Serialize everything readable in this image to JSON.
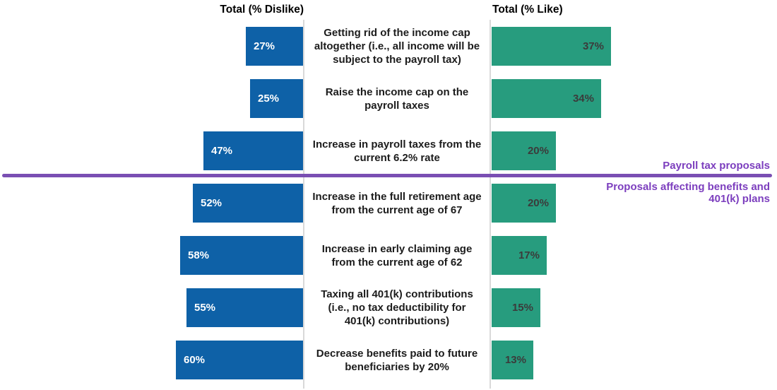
{
  "chart_data": {
    "type": "bar",
    "variant": "diverging-horizontal",
    "left_header": "Total (% Dislike)",
    "right_header": "Total (% Like)",
    "value_suffix": "%",
    "grid": "off",
    "legend_position": "column-headers",
    "categories": [
      "Getting rid of the income cap altogether (i.e., all income will be subject to the payroll tax)",
      "Raise the income cap on the payroll taxes",
      "Increase in payroll taxes from the current 6.2% rate",
      "Increase in the full retirement age from the current age of 67",
      "Increase in early claiming age from the current age of 62",
      "Taxing all 401(k) contributions (i.e., no tax deductibility for 401(k) contributions)",
      "Decrease benefits paid to future beneficiaries by 20%"
    ],
    "series": [
      {
        "name": "Total (% Dislike)",
        "side": "left",
        "color": "#0E61A7",
        "label_color": "#FFFFFF",
        "values": [
          27,
          25,
          47,
          52,
          58,
          55,
          60
        ]
      },
      {
        "name": "Total (% Like)",
        "side": "right",
        "color": "#279C7E",
        "label_color": "#3B3B3B",
        "values": [
          37,
          34,
          20,
          20,
          17,
          15,
          13
        ]
      }
    ],
    "xlim_left": [
      0,
      60
    ],
    "xlim_right": [
      0,
      37
    ],
    "axis_line_color": "#D9D9D9",
    "group_divider": {
      "after_category_index": 2,
      "line_color": "#7A4FB3",
      "label_color": "#7C3EBE",
      "above_label": "Payroll tax proposals",
      "below_label": "Proposals affecting benefits and 401(k) plans"
    }
  }
}
